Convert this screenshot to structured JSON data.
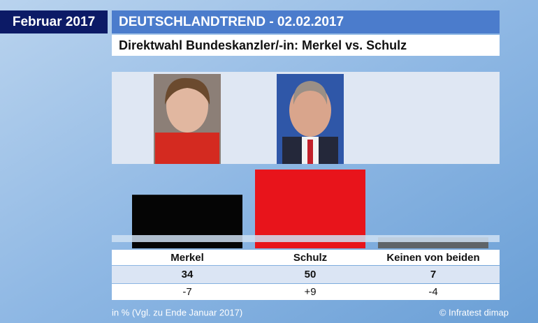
{
  "header": {
    "date": "Februar 2017",
    "title": "DEUTSCHLANDTREND - 02.02.2017",
    "subtitle": "Direktwahl Bundeskanzler/-in: Merkel vs. Schulz"
  },
  "chart_data": {
    "type": "bar",
    "categories": [
      "Merkel",
      "Schulz",
      "Keinen von beiden"
    ],
    "values": [
      34,
      50,
      7
    ],
    "colors": [
      "#050505",
      "#e8141b",
      "#5f6468"
    ],
    "changes": [
      "-7",
      "+9",
      "-4"
    ]
  },
  "footer": {
    "note": "in % (Vgl. zu Ende Januar 2017)",
    "source": "© Infratest dimap"
  }
}
